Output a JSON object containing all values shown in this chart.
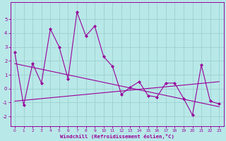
{
  "x": [
    0,
    1,
    2,
    3,
    4,
    5,
    6,
    7,
    8,
    9,
    10,
    11,
    12,
    13,
    14,
    15,
    16,
    17,
    18,
    19,
    20,
    21,
    22,
    23
  ],
  "y": [
    2.6,
    -1.2,
    1.8,
    0.4,
    4.3,
    3.0,
    0.7,
    5.5,
    3.8,
    4.5,
    2.3,
    1.6,
    -0.4,
    0.1,
    0.5,
    -0.5,
    -0.6,
    0.4,
    0.4,
    -0.7,
    -1.9,
    1.7,
    -0.9,
    -1.1
  ],
  "line_color": "#990099",
  "bg_color": "#b8e8e8",
  "grid_color": "#99cccc",
  "xlabel": "Windchill (Refroidissement éolien,°C)",
  "xlim": [
    -0.5,
    23.5
  ],
  "ylim": [
    -2.7,
    6.2
  ],
  "yticks": [
    -2,
    -1,
    0,
    1,
    2,
    3,
    4,
    5
  ],
  "xticks": [
    0,
    1,
    2,
    3,
    4,
    5,
    6,
    7,
    8,
    9,
    10,
    11,
    12,
    13,
    14,
    15,
    16,
    17,
    18,
    19,
    20,
    21,
    22,
    23
  ],
  "trend1_x0": 0,
  "trend1_y0": 1.8,
  "trend1_x1": 23,
  "trend1_y1": -1.3,
  "trend2_x0": 0,
  "trend2_y0": -0.9,
  "trend2_x1": 23,
  "trend2_y1": 0.5
}
